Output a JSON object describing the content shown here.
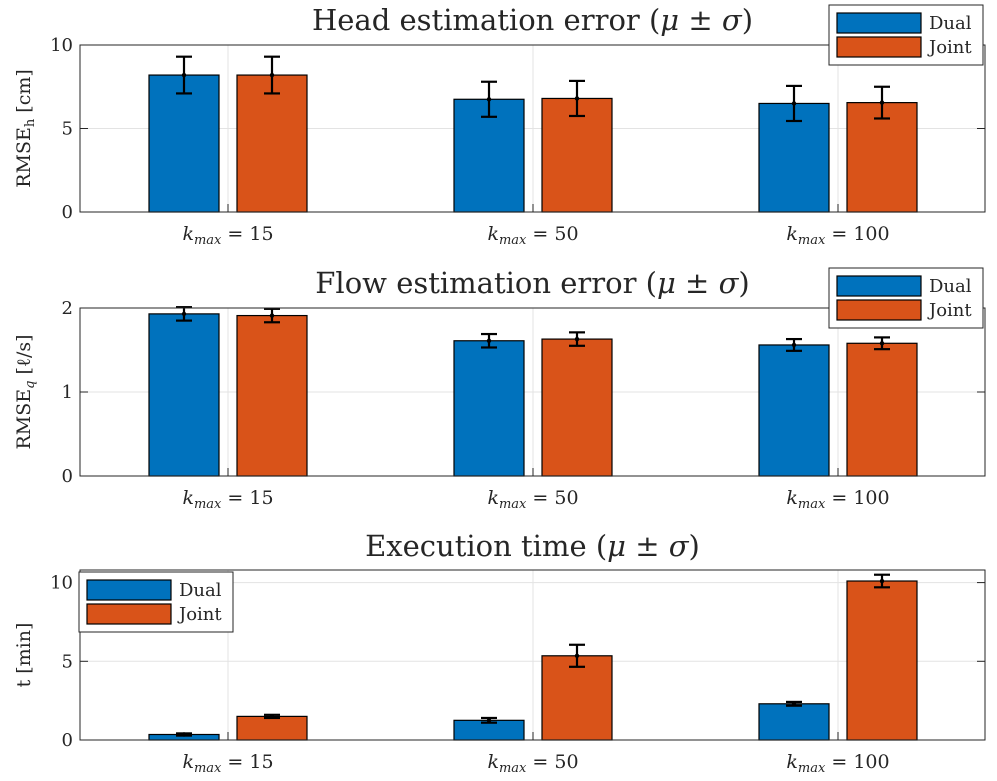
{
  "chart_data": [
    {
      "type": "bar",
      "title": "Head estimation error (μ ± σ)",
      "ylabel": "RMSE_h [cm]",
      "ylabel_main": "RMSE",
      "ylabel_sub": "h",
      "ylabel_unit": "[cm]",
      "xlabel": "",
      "categories": [
        "k_max = 15",
        "k_max = 50",
        "k_max = 100"
      ],
      "category_k": [
        "15",
        "50",
        "100"
      ],
      "ylim": [
        0,
        10
      ],
      "yticks": [
        "0",
        "5",
        "10"
      ],
      "grid": true,
      "legend_position": "top-right",
      "series": [
        {
          "name": "Dual",
          "color": "#0072BD",
          "values": [
            8.2,
            6.75,
            6.5
          ],
          "std": [
            1.1,
            1.05,
            1.05
          ]
        },
        {
          "name": "Joint",
          "color": "#D95319",
          "values": [
            8.2,
            6.8,
            6.55
          ],
          "std": [
            1.1,
            1.05,
            0.95
          ]
        }
      ]
    },
    {
      "type": "bar",
      "title": "Flow estimation error (μ ± σ)",
      "ylabel": "RMSE_q [ℓ/s]",
      "ylabel_main": "RMSE",
      "ylabel_sub": "q",
      "ylabel_unit": "[ℓ/s]",
      "xlabel": "",
      "categories": [
        "k_max = 15",
        "k_max = 50",
        "k_max = 100"
      ],
      "category_k": [
        "15",
        "50",
        "100"
      ],
      "ylim": [
        0,
        2
      ],
      "yticks": [
        "0",
        "1",
        "2"
      ],
      "grid": true,
      "legend_position": "top-right",
      "series": [
        {
          "name": "Dual",
          "color": "#0072BD",
          "values": [
            1.93,
            1.61,
            1.56
          ],
          "std": [
            0.08,
            0.08,
            0.07
          ]
        },
        {
          "name": "Joint",
          "color": "#D95319",
          "values": [
            1.91,
            1.63,
            1.58
          ],
          "std": [
            0.08,
            0.08,
            0.07
          ]
        }
      ]
    },
    {
      "type": "bar",
      "title": "Execution time (μ ± σ)",
      "ylabel": "t [min]",
      "ylabel_main": "t [min]",
      "ylabel_sub": "",
      "ylabel_unit": "",
      "xlabel": "",
      "categories": [
        "k_max = 15",
        "k_max = 50",
        "k_max = 100"
      ],
      "category_k": [
        "15",
        "50",
        "100"
      ],
      "ylim": [
        0,
        10.8
      ],
      "yticks": [
        "0",
        "5",
        "10"
      ],
      "grid": true,
      "legend_position": "top-left",
      "series": [
        {
          "name": "Dual",
          "color": "#0072BD",
          "values": [
            0.35,
            1.25,
            2.3
          ],
          "std": [
            0.07,
            0.15,
            0.12
          ]
        },
        {
          "name": "Joint",
          "color": "#D95319",
          "values": [
            1.5,
            5.35,
            10.1
          ],
          "std": [
            0.1,
            0.7,
            0.4
          ]
        }
      ]
    }
  ]
}
